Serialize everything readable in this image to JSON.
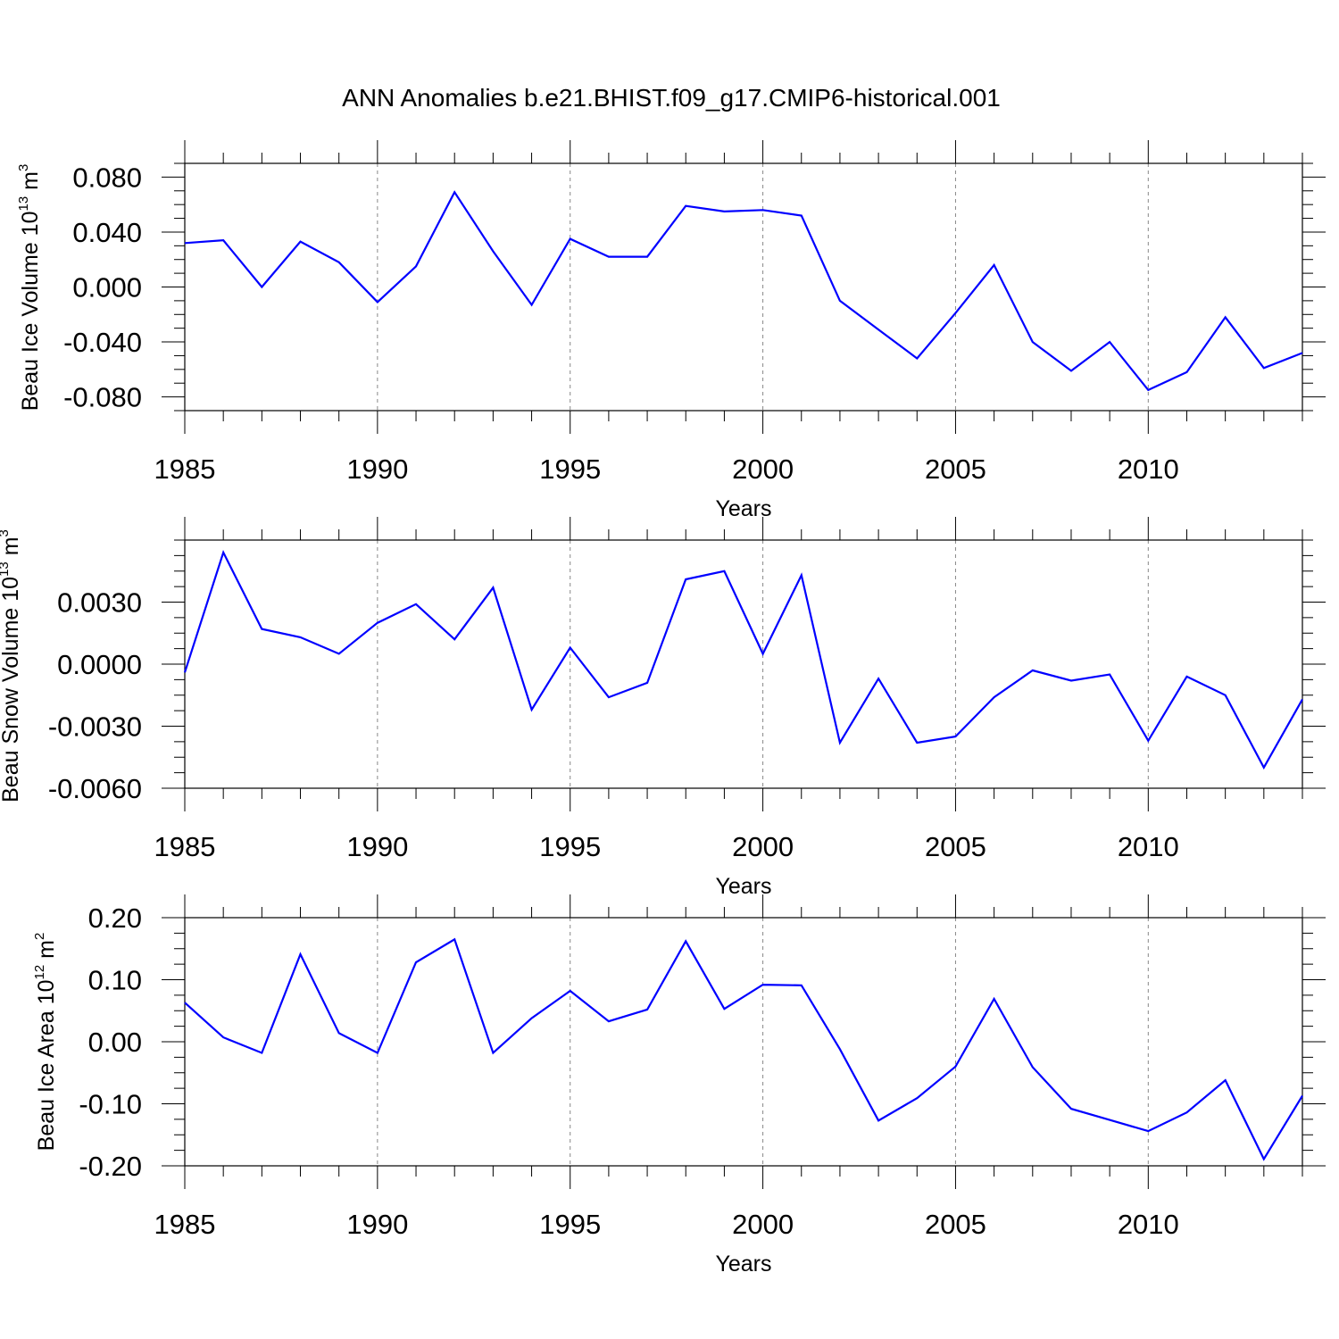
{
  "title": "ANN Anomalies b.e21.BHIST.f09_g17.CMIP6-historical.001",
  "line_color": "#0000ff",
  "chart_data": [
    {
      "type": "line",
      "ylabel": {
        "main": "Beau Ice Volume 10",
        "exp": "13",
        "unit": " m",
        "unit_exp": "3"
      },
      "xlabel": "Years",
      "xlim": [
        1985,
        2014
      ],
      "ylim": [
        -0.09,
        0.09
      ],
      "yticks": [
        -0.08,
        -0.04,
        0.0,
        0.04,
        0.08
      ],
      "ytick_labels": [
        "-0.080",
        "-0.040",
        "0.000",
        "0.040",
        "0.080"
      ],
      "xticks": [
        1985,
        1990,
        1995,
        2000,
        2005,
        2010
      ],
      "xtick_labels": [
        "1985",
        "1990",
        "1995",
        "2000",
        "2005",
        "2010"
      ],
      "x": [
        1985,
        1986,
        1987,
        1988,
        1989,
        1990,
        1991,
        1992,
        1993,
        1994,
        1995,
        1996,
        1997,
        1998,
        1999,
        2000,
        2001,
        2002,
        2003,
        2004,
        2005,
        2006,
        2007,
        2008,
        2009,
        2010,
        2011,
        2012,
        2013,
        2014
      ],
      "y": [
        0.032,
        0.034,
        0.0,
        0.033,
        0.018,
        -0.011,
        0.015,
        0.069,
        0.026,
        -0.013,
        0.035,
        0.022,
        0.022,
        0.059,
        0.055,
        0.056,
        0.052,
        -0.01,
        -0.031,
        -0.052,
        -0.019,
        0.016,
        -0.04,
        -0.061,
        -0.04,
        -0.075,
        -0.062,
        -0.022,
        -0.059,
        -0.048
      ]
    },
    {
      "type": "line",
      "ylabel": {
        "main": "Beau Snow Volume 10",
        "exp": "13",
        "unit": " m",
        "unit_exp": "3"
      },
      "xlabel": "Years",
      "xlim": [
        1985,
        2014
      ],
      "ylim": [
        -0.006,
        0.006
      ],
      "yticks": [
        -0.006,
        -0.003,
        0.0,
        0.003
      ],
      "ytick_labels": [
        "-0.0060",
        "-0.0030",
        "0.0000",
        "0.0030"
      ],
      "xticks": [
        1985,
        1990,
        1995,
        2000,
        2005,
        2010
      ],
      "xtick_labels": [
        "1985",
        "1990",
        "1995",
        "2000",
        "2005",
        "2010"
      ],
      "x": [
        1985,
        1986,
        1987,
        1988,
        1989,
        1990,
        1991,
        1992,
        1993,
        1994,
        1995,
        1996,
        1997,
        1998,
        1999,
        2000,
        2001,
        2002,
        2003,
        2004,
        2005,
        2006,
        2007,
        2008,
        2009,
        2010,
        2011,
        2012,
        2013,
        2014
      ],
      "y": [
        -0.0004,
        0.0054,
        0.0017,
        0.0013,
        0.0005,
        0.002,
        0.0029,
        0.0012,
        0.0037,
        -0.0022,
        0.0008,
        -0.0016,
        -0.0009,
        0.0041,
        0.0045,
        0.0005,
        0.0043,
        -0.0038,
        -0.0007,
        -0.0038,
        -0.0035,
        -0.0016,
        -0.0003,
        -0.0008,
        -0.0005,
        -0.0037,
        -0.0006,
        -0.0015,
        -0.005,
        -0.0017
      ]
    },
    {
      "type": "line",
      "ylabel": {
        "main": "Beau Ice Area 10",
        "exp": "12",
        "unit": " m",
        "unit_exp": "2"
      },
      "xlabel": "Years",
      "xlim": [
        1985,
        2014
      ],
      "ylim": [
        -0.2,
        0.2
      ],
      "yticks": [
        -0.2,
        -0.1,
        0.0,
        0.1,
        0.2
      ],
      "ytick_labels": [
        "-0.20",
        "-0.10",
        "0.00",
        "0.10",
        "0.20"
      ],
      "xticks": [
        1985,
        1990,
        1995,
        2000,
        2005,
        2010
      ],
      "xtick_labels": [
        "1985",
        "1990",
        "1995",
        "2000",
        "2005",
        "2010"
      ],
      "x": [
        1985,
        1986,
        1987,
        1988,
        1989,
        1990,
        1991,
        1992,
        1993,
        1994,
        1995,
        1996,
        1997,
        1998,
        1999,
        2000,
        2001,
        2002,
        2003,
        2004,
        2005,
        2006,
        2007,
        2008,
        2009,
        2010,
        2011,
        2012,
        2013,
        2014
      ],
      "y": [
        0.063,
        0.007,
        -0.018,
        0.141,
        0.014,
        -0.018,
        0.128,
        0.165,
        -0.018,
        0.038,
        0.082,
        0.033,
        0.052,
        0.162,
        0.053,
        0.092,
        0.091,
        -0.012,
        -0.127,
        -0.091,
        -0.04,
        0.069,
        -0.041,
        -0.108,
        -0.126,
        -0.144,
        -0.114,
        -0.062,
        -0.189,
        -0.087
      ]
    }
  ]
}
